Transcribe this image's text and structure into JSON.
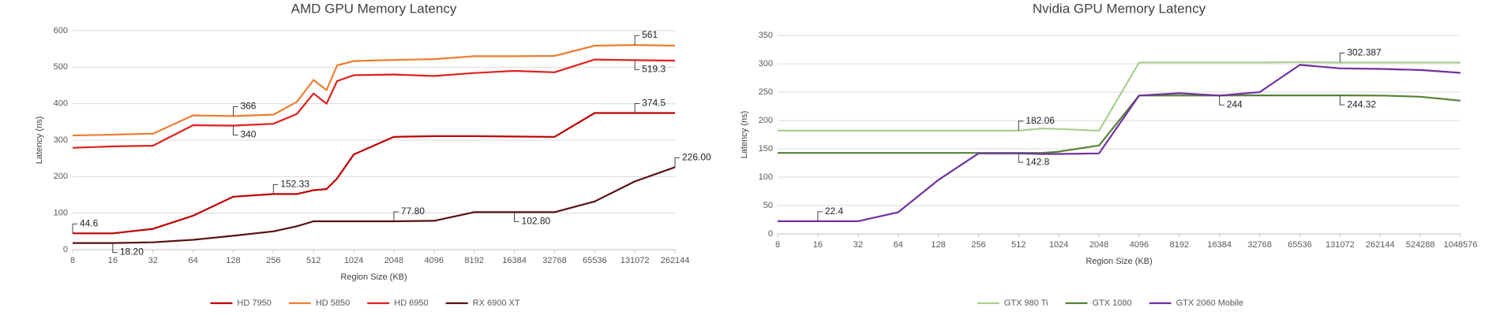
{
  "chart_data": [
    {
      "type": "line",
      "title": "AMD GPU Memory Latency",
      "x_label": "Region Size (KB)",
      "y_label": "Latency (ns)",
      "x": [
        8,
        16,
        32,
        64,
        128,
        256,
        384,
        512,
        640,
        768,
        1024,
        2048,
        4096,
        8192,
        16384,
        32768,
        65536,
        131072,
        262144
      ],
      "xlim": [
        8,
        262144
      ],
      "xticks": [
        8,
        16,
        32,
        64,
        128,
        256,
        512,
        1024,
        2048,
        4096,
        8192,
        16384,
        32768,
        65536,
        131072,
        262144
      ],
      "x_log": true,
      "ylim": [
        0,
        600
      ],
      "yticks": [
        0,
        100,
        200,
        300,
        400,
        500,
        600
      ],
      "grid": true,
      "legend": "bottom",
      "series": [
        {
          "name": "HD 7950",
          "color": "#c00000",
          "values": [
            44.6,
            44.6,
            57,
            93,
            145,
            152.33,
            152.33,
            163,
            166,
            195,
            261,
            309,
            311,
            311,
            310,
            309,
            374.5,
            374.5,
            374.5
          ],
          "value_labels": [
            "44.6",
            null,
            null,
            null,
            null,
            "152.33",
            null,
            null,
            null,
            null,
            null,
            null,
            null,
            null,
            null,
            null,
            null,
            "374.5",
            null
          ]
        },
        {
          "name": "HD 5850",
          "color": "#ed7d31",
          "values": [
            313,
            315,
            318,
            368,
            366,
            370,
            405,
            465,
            437,
            505,
            517,
            520,
            522,
            530,
            530,
            531,
            559,
            561,
            559
          ],
          "value_labels": [
            null,
            null,
            null,
            null,
            "366",
            null,
            null,
            null,
            null,
            null,
            null,
            null,
            null,
            null,
            null,
            null,
            null,
            "561",
            null
          ]
        },
        {
          "name": "HD 6950",
          "color": "#e0201c",
          "values": [
            279,
            283,
            285,
            341,
            340,
            345,
            372,
            428,
            400,
            462,
            478,
            480,
            476,
            484,
            490,
            486,
            521,
            519.3,
            518
          ],
          "value_labels": [
            null,
            null,
            null,
            null,
            "340",
            null,
            null,
            null,
            null,
            null,
            null,
            null,
            null,
            null,
            null,
            null,
            null,
            "519.3",
            null
          ]
        },
        {
          "name": "RX 6900 XT",
          "color": "#5a1010",
          "values": [
            18.2,
            18.2,
            20,
            27,
            38,
            50,
            64,
            77.8,
            77.8,
            77.8,
            77.8,
            77.8,
            79,
            102.8,
            102.8,
            102.8,
            132,
            187,
            226
          ],
          "value_labels": [
            null,
            "18.20",
            null,
            null,
            null,
            null,
            null,
            null,
            null,
            null,
            null,
            "77.80",
            null,
            null,
            "102.80",
            null,
            null,
            null,
            "226.00"
          ]
        }
      ]
    },
    {
      "type": "line",
      "title": "Nvidia GPU Memory Latency",
      "x_label": "Region Size (KB)",
      "y_label": "Latency (ns)",
      "x": [
        8,
        16,
        32,
        64,
        128,
        256,
        512,
        768,
        1024,
        2048,
        4096,
        8192,
        16384,
        32768,
        65536,
        131072,
        262144,
        524288,
        1048576
      ],
      "xlim": [
        8,
        1048576
      ],
      "xticks": [
        8,
        16,
        32,
        64,
        128,
        256,
        512,
        1024,
        2048,
        4096,
        8192,
        16384,
        32768,
        65536,
        131072,
        262144,
        524288,
        1048576
      ],
      "x_log": true,
      "ylim": [
        0,
        350
      ],
      "yticks": [
        0,
        50,
        100,
        150,
        200,
        250,
        300,
        350
      ],
      "grid": true,
      "legend": "bottom",
      "series": [
        {
          "name": "GTX 980 Ti",
          "color": "#a9d18e",
          "values": [
            182.06,
            182.06,
            182.06,
            182.06,
            182.06,
            182.06,
            182.06,
            186,
            185,
            182,
            302.387,
            302.387,
            302.387,
            302.387,
            303,
            302.387,
            302.387,
            302.387,
            302.387
          ],
          "value_labels": [
            null,
            null,
            null,
            null,
            null,
            null,
            "182.06",
            null,
            null,
            null,
            null,
            null,
            null,
            null,
            null,
            "302.387",
            null,
            null,
            null
          ]
        },
        {
          "name": "GTX 1080",
          "color": "#548235",
          "values": [
            142.8,
            142.8,
            142.8,
            142.8,
            142.8,
            142.8,
            142.8,
            142.8,
            145,
            156,
            244,
            244,
            244,
            244.32,
            244.32,
            244.32,
            244,
            242,
            235
          ],
          "value_labels": [
            null,
            null,
            null,
            null,
            null,
            null,
            "142.8",
            null,
            null,
            null,
            null,
            null,
            "244",
            null,
            null,
            "244.32",
            null,
            null,
            null
          ]
        },
        {
          "name": "GTX 2060 Mobile",
          "color": "#7030a0",
          "values": [
            22.4,
            22.4,
            22.4,
            38,
            95,
            142,
            142,
            141,
            141,
            142,
            244,
            248,
            244,
            250,
            298,
            292,
            291,
            289,
            284
          ],
          "value_labels": [
            null,
            "22.4",
            null,
            null,
            null,
            null,
            null,
            null,
            null,
            null,
            null,
            null,
            null,
            null,
            null,
            null,
            null,
            null,
            null
          ]
        }
      ]
    }
  ]
}
